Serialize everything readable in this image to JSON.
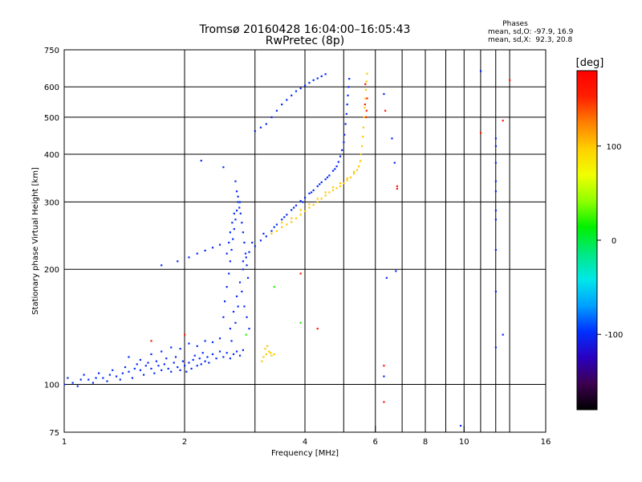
{
  "chart_data": {
    "type": "scatter",
    "title": "Tromsø 20160428 16:04:00–16:05:43",
    "subtitle": "RwPretec (8p)",
    "xlabel": "Frequency [MHz]",
    "ylabel": "Stationary phase Virtual Height [km]",
    "x_scale": "log",
    "y_scale": "log",
    "xlim": [
      1,
      16
    ],
    "ylim": [
      75,
      750
    ],
    "grid": true,
    "x_ticks": [
      {
        "value": 1,
        "label": "1"
      },
      {
        "value": 2,
        "label": "2"
      },
      {
        "value": 4,
        "label": "4"
      },
      {
        "value": 6,
        "label": "6"
      },
      {
        "value": 8,
        "label": "8"
      },
      {
        "value": 10,
        "label": "10"
      },
      {
        "value": 16,
        "label": "16"
      }
    ],
    "x_grid": [
      1,
      2,
      3,
      4,
      5,
      6,
      7,
      8,
      9,
      10,
      11,
      12,
      13,
      16
    ],
    "y_ticks": [
      {
        "value": 75,
        "label": "75"
      },
      {
        "value": 100,
        "label": "100"
      },
      {
        "value": 200,
        "label": "200"
      },
      {
        "value": 300,
        "label": "300"
      },
      {
        "value": 400,
        "label": "400"
      },
      {
        "value": 500,
        "label": "500"
      },
      {
        "value": 600,
        "label": "600"
      },
      {
        "value": 750,
        "label": "750"
      }
    ],
    "y_grid": [
      100,
      200,
      300,
      400,
      500,
      600
    ],
    "stats": {
      "heading": "Phases",
      "line_O": "mean, sd,O: -97.9, 16.9",
      "line_X": "mean, sd,X:  92.3, 20.8"
    },
    "colorbar": {
      "label": "[deg]",
      "range": [
        -180,
        180
      ],
      "ticks": [
        {
          "value": 100,
          "label": "100"
        },
        {
          "value": 0,
          "label": "0"
        },
        {
          "value": -100,
          "label": "-100"
        }
      ],
      "stops": [
        "#000000",
        "#3d0050",
        "#2a00c0",
        "#0030ff",
        "#00a0ff",
        "#00e8e8",
        "#00e880",
        "#00f000",
        "#90ff00",
        "#f0ff00",
        "#ffd000",
        "#ff8000",
        "#ff2000",
        "#ff0000"
      ]
    },
    "series": [
      {
        "phase": -100,
        "points": [
          [
            1.0,
            100
          ],
          [
            1.02,
            104
          ],
          [
            1.05,
            101
          ],
          [
            1.08,
            99
          ],
          [
            1.1,
            103
          ],
          [
            1.12,
            106
          ],
          [
            1.15,
            103
          ],
          [
            1.18,
            101
          ],
          [
            1.2,
            104
          ],
          [
            1.22,
            107
          ],
          [
            1.25,
            104
          ],
          [
            1.28,
            102
          ],
          [
            1.3,
            106
          ],
          [
            1.32,
            109
          ],
          [
            1.35,
            105
          ],
          [
            1.38,
            103
          ],
          [
            1.4,
            107
          ],
          [
            1.42,
            111
          ],
          [
            1.45,
            108
          ],
          [
            1.48,
            104
          ],
          [
            1.5,
            110
          ],
          [
            1.52,
            113
          ],
          [
            1.55,
            109
          ],
          [
            1.58,
            106
          ],
          [
            1.6,
            112
          ],
          [
            1.62,
            114
          ],
          [
            1.65,
            110
          ],
          [
            1.68,
            107
          ],
          [
            1.7,
            115
          ],
          [
            1.72,
            112
          ],
          [
            1.75,
            109
          ],
          [
            1.78,
            113
          ],
          [
            1.8,
            117
          ],
          [
            1.82,
            110
          ],
          [
            1.85,
            108
          ],
          [
            1.88,
            114
          ],
          [
            1.9,
            118
          ],
          [
            1.92,
            111
          ],
          [
            1.95,
            109
          ],
          [
            1.98,
            115
          ],
          [
            2.0,
            112
          ],
          [
            2.02,
            108
          ],
          [
            2.05,
            114
          ],
          [
            2.08,
            110
          ],
          [
            2.1,
            116
          ],
          [
            2.12,
            119
          ],
          [
            2.15,
            112
          ],
          [
            2.18,
            117
          ],
          [
            2.2,
            113
          ],
          [
            2.22,
            121
          ],
          [
            2.25,
            115
          ],
          [
            2.28,
            118
          ],
          [
            2.3,
            114
          ],
          [
            2.35,
            120
          ],
          [
            2.4,
            117
          ],
          [
            2.45,
            122
          ],
          [
            2.5,
            118
          ],
          [
            2.55,
            121
          ],
          [
            2.6,
            117
          ],
          [
            2.65,
            120
          ],
          [
            2.7,
            122
          ],
          [
            2.75,
            119
          ],
          [
            2.8,
            123
          ],
          [
            1.45,
            118
          ],
          [
            1.55,
            116
          ],
          [
            1.65,
            120
          ],
          [
            1.75,
            122
          ],
          [
            1.85,
            125
          ],
          [
            1.95,
            124
          ],
          [
            2.05,
            128
          ],
          [
            2.15,
            126
          ],
          [
            2.25,
            130
          ],
          [
            2.35,
            129
          ],
          [
            2.45,
            132
          ],
          [
            2.5,
            150
          ],
          [
            2.52,
            165
          ],
          [
            2.55,
            180
          ],
          [
            2.58,
            195
          ],
          [
            2.6,
            210
          ],
          [
            2.62,
            225
          ],
          [
            2.64,
            240
          ],
          [
            2.66,
            255
          ],
          [
            2.68,
            270
          ],
          [
            2.7,
            285
          ],
          [
            2.72,
            300
          ],
          [
            2.74,
            290
          ],
          [
            2.76,
            280
          ],
          [
            2.78,
            265
          ],
          [
            2.8,
            250
          ],
          [
            2.82,
            235
          ],
          [
            2.84,
            220
          ],
          [
            2.86,
            205
          ],
          [
            2.88,
            190
          ],
          [
            2.6,
            140
          ],
          [
            2.65,
            155
          ],
          [
            2.7,
            170
          ],
          [
            2.75,
            185
          ],
          [
            2.8,
            200
          ],
          [
            2.85,
            215
          ],
          [
            2.62,
            130
          ],
          [
            2.68,
            145
          ],
          [
            2.72,
            160
          ],
          [
            2.78,
            175
          ],
          [
            2.82,
            160
          ],
          [
            2.86,
            150
          ],
          [
            2.9,
            140
          ],
          [
            2.55,
            220
          ],
          [
            2.58,
            235
          ],
          [
            2.6,
            250
          ],
          [
            2.63,
            265
          ],
          [
            2.66,
            280
          ],
          [
            2.7,
            320
          ],
          [
            2.68,
            340
          ],
          [
            2.72,
            310
          ],
          [
            2.75,
            300
          ],
          [
            2.8,
            210
          ],
          [
            2.9,
            222
          ],
          [
            3.0,
            230
          ],
          [
            3.1,
            238
          ],
          [
            3.2,
            244
          ],
          [
            3.3,
            252
          ],
          [
            3.4,
            262
          ],
          [
            3.5,
            270
          ],
          [
            3.6,
            278
          ],
          [
            3.7,
            286
          ],
          [
            3.8,
            294
          ],
          [
            3.9,
            302
          ],
          [
            4.0,
            308
          ],
          [
            4.1,
            316
          ],
          [
            4.2,
            322
          ],
          [
            4.3,
            330
          ],
          [
            4.4,
            338
          ],
          [
            4.5,
            344
          ],
          [
            4.6,
            352
          ],
          [
            4.7,
            362
          ],
          [
            4.8,
            372
          ],
          [
            4.85,
            382
          ],
          [
            4.9,
            395
          ],
          [
            4.95,
            410
          ],
          [
            5.0,
            430
          ],
          [
            5.02,
            450
          ],
          [
            5.05,
            480
          ],
          [
            5.08,
            510
          ],
          [
            5.1,
            540
          ],
          [
            5.12,
            570
          ],
          [
            5.14,
            600
          ],
          [
            5.16,
            630
          ],
          [
            2.95,
            235
          ],
          [
            3.15,
            248
          ],
          [
            3.35,
            258
          ],
          [
            3.55,
            274
          ],
          [
            3.75,
            290
          ],
          [
            3.95,
            300
          ],
          [
            4.15,
            318
          ],
          [
            4.35,
            334
          ],
          [
            4.55,
            348
          ],
          [
            4.75,
            366
          ],
          [
            1.92,
            210
          ],
          [
            2.05,
            215
          ],
          [
            2.15,
            220
          ],
          [
            2.25,
            224
          ],
          [
            2.35,
            228
          ],
          [
            2.45,
            232
          ],
          [
            1.75,
            205
          ],
          [
            3.0,
            460
          ],
          [
            3.1,
            470
          ],
          [
            3.2,
            480
          ],
          [
            3.3,
            500
          ],
          [
            3.4,
            520
          ],
          [
            3.5,
            540
          ],
          [
            3.6,
            555
          ],
          [
            3.7,
            570
          ],
          [
            3.8,
            585
          ],
          [
            3.9,
            595
          ],
          [
            4.0,
            605
          ],
          [
            4.1,
            615
          ],
          [
            4.2,
            625
          ],
          [
            4.3,
            632
          ],
          [
            4.4,
            640
          ],
          [
            4.5,
            648
          ],
          [
            2.2,
            385
          ],
          [
            2.5,
            370
          ],
          [
            6.3,
            575
          ],
          [
            6.6,
            440
          ],
          [
            6.7,
            380
          ],
          [
            6.75,
            198
          ],
          [
            6.4,
            190
          ],
          [
            6.3,
            105
          ],
          [
            9.8,
            78
          ],
          [
            11.0,
            660
          ],
          [
            12.0,
            440
          ],
          [
            12.0,
            420
          ],
          [
            12.0,
            380
          ],
          [
            12.0,
            340
          ],
          [
            12.0,
            320
          ],
          [
            12.0,
            285
          ],
          [
            12.0,
            270
          ],
          [
            12.0,
            225
          ],
          [
            12.0,
            175
          ],
          [
            12.0,
            125
          ],
          [
            12.5,
            135
          ]
        ]
      },
      {
        "phase": 100,
        "points": [
          [
            3.3,
            248
          ],
          [
            3.4,
            252
          ],
          [
            3.5,
            258
          ],
          [
            3.6,
            262
          ],
          [
            3.7,
            266
          ],
          [
            3.8,
            272
          ],
          [
            3.9,
            278
          ],
          [
            4.0,
            284
          ],
          [
            4.1,
            290
          ],
          [
            4.2,
            295
          ],
          [
            4.3,
            300
          ],
          [
            4.4,
            306
          ],
          [
            4.5,
            312
          ],
          [
            4.6,
            318
          ],
          [
            4.7,
            322
          ],
          [
            4.8,
            326
          ],
          [
            4.9,
            330
          ],
          [
            5.0,
            336
          ],
          [
            5.1,
            342
          ],
          [
            5.2,
            348
          ],
          [
            5.3,
            356
          ],
          [
            5.4,
            364
          ],
          [
            5.45,
            372
          ],
          [
            5.5,
            384
          ],
          [
            5.52,
            400
          ],
          [
            5.55,
            420
          ],
          [
            5.58,
            445
          ],
          [
            5.6,
            470
          ],
          [
            5.62,
            500
          ],
          [
            5.64,
            530
          ],
          [
            5.66,
            560
          ],
          [
            5.68,
            590
          ],
          [
            5.7,
            620
          ],
          [
            5.72,
            650
          ],
          [
            3.5,
            265
          ],
          [
            3.7,
            272
          ],
          [
            3.9,
            286
          ],
          [
            4.1,
            296
          ],
          [
            4.3,
            306
          ],
          [
            4.5,
            318
          ],
          [
            4.7,
            328
          ],
          [
            4.9,
            336
          ],
          [
            5.1,
            346
          ],
          [
            5.3,
            360
          ],
          [
            3.15,
            118
          ],
          [
            3.2,
            120
          ],
          [
            3.25,
            122
          ],
          [
            3.3,
            119
          ],
          [
            3.18,
            124
          ],
          [
            3.22,
            126
          ],
          [
            3.28,
            121
          ],
          [
            3.12,
            115
          ],
          [
            3.35,
            120
          ]
        ]
      },
      {
        "phase": 160,
        "points": [
          [
            5.65,
            540
          ],
          [
            5.7,
            520
          ],
          [
            5.68,
            500
          ],
          [
            5.72,
            560
          ],
          [
            5.66,
            610
          ],
          [
            6.3,
            90
          ],
          [
            6.3,
            112
          ],
          [
            6.8,
            330
          ],
          [
            6.8,
            325
          ],
          [
            11.0,
            455
          ],
          [
            12.5,
            490
          ],
          [
            13.0,
            625
          ],
          [
            1.65,
            130
          ],
          [
            2.0,
            135
          ],
          [
            3.9,
            195
          ],
          [
            4.3,
            140
          ],
          [
            6.35,
            520
          ]
        ]
      },
      {
        "phase": 20,
        "points": [
          [
            3.35,
            180
          ],
          [
            3.9,
            145
          ],
          [
            2.85,
            135
          ]
        ]
      }
    ]
  }
}
